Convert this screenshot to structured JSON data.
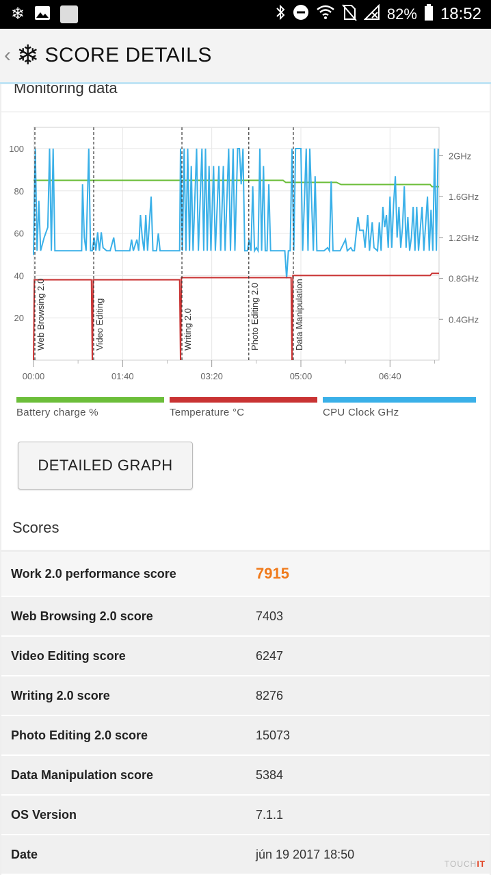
{
  "status_bar": {
    "battery_percent": "82%",
    "time": "18:52",
    "left_icons": [
      "snowflake-icon",
      "image-icon",
      "square-icon"
    ],
    "right_icons": [
      "bluetooth-icon",
      "do-not-disturb-icon",
      "wifi-icon",
      "no-sim-icon",
      "signal-off-icon",
      "battery-icon"
    ]
  },
  "app_bar": {
    "back_glyph": "‹",
    "title": "SCORE DETAILS"
  },
  "monitoring": {
    "title": "Monitoring data"
  },
  "chart_data": {
    "type": "line",
    "x": {
      "unit": "mm:ss",
      "ticks": [
        "00:00",
        "01:40",
        "03:20",
        "05:00",
        "06:40"
      ],
      "range": [
        0,
        455
      ]
    },
    "y_left": {
      "ticks": [
        20,
        40,
        60,
        80,
        100
      ],
      "range": [
        0,
        100
      ]
    },
    "y_right": {
      "ticks": [
        "0.4GHz",
        "0.8GHz",
        "1.2GHz",
        "1.6GHz",
        "2GHz"
      ],
      "range_ghz": [
        0,
        2.07
      ]
    },
    "grid": true,
    "markers": [
      {
        "label": "Web Browsing 2.0",
        "x": 0
      },
      {
        "label": "Video Editing",
        "x": 66
      },
      {
        "label": "Writing 2.0",
        "x": 165
      },
      {
        "label": "Photo Editing 2.0",
        "x": 240
      },
      {
        "label": "Data Manipulation",
        "x": 290
      }
    ],
    "series": [
      {
        "name": "Battery charge %",
        "color": "#6cbe3a",
        "axis": "left",
        "points": [
          [
            0,
            85
          ],
          [
            280,
            85
          ],
          [
            283,
            84
          ],
          [
            340,
            84
          ],
          [
            345,
            83
          ],
          [
            445,
            83
          ],
          [
            447,
            82
          ],
          [
            455,
            82
          ]
        ]
      },
      {
        "name": "Temperature °C",
        "color": "#c93333",
        "axis": "left",
        "points": [
          [
            0,
            0
          ],
          [
            1,
            38
          ],
          [
            65,
            38
          ],
          [
            66,
            0
          ],
          [
            67,
            38
          ],
          [
            164,
            38
          ],
          [
            165,
            0
          ],
          [
            166,
            39
          ],
          [
            289,
            39
          ],
          [
            290,
            0
          ],
          [
            291,
            40
          ],
          [
            445,
            40
          ],
          [
            447,
            41
          ],
          [
            455,
            41
          ]
        ]
      },
      {
        "name": "CPU Clock GHz",
        "color": "#3ab0e8",
        "axis": "right",
        "points": [
          [
            0,
            1.03
          ],
          [
            2,
            2.07
          ],
          [
            4,
            1.07
          ],
          [
            6,
            1.56
          ],
          [
            8,
            1.07
          ],
          [
            12,
            1.2
          ],
          [
            16,
            1.3
          ],
          [
            18,
            2.07
          ],
          [
            20,
            1.07
          ],
          [
            22,
            2.07
          ],
          [
            24,
            1.07
          ],
          [
            30,
            1.07
          ],
          [
            42,
            1.07
          ],
          [
            54,
            1.07
          ],
          [
            55,
            1.72
          ],
          [
            57,
            1.2
          ],
          [
            59,
            1.07
          ],
          [
            62,
            2.07
          ],
          [
            64,
            1.07
          ],
          [
            66,
            1.07
          ],
          [
            68,
            1.2
          ],
          [
            70,
            1.07
          ],
          [
            72,
            1.25
          ],
          [
            74,
            1.07
          ],
          [
            76,
            1.25
          ],
          [
            78,
            1.1
          ],
          [
            82,
            1.07
          ],
          [
            86,
            1.07
          ],
          [
            90,
            1.2
          ],
          [
            92,
            1.07
          ],
          [
            96,
            1.07
          ],
          [
            100,
            1.07
          ],
          [
            108,
            1.07
          ],
          [
            110,
            1.18
          ],
          [
            112,
            1.07
          ],
          [
            116,
            1.18
          ],
          [
            118,
            1.07
          ],
          [
            120,
            1.42
          ],
          [
            122,
            1.2
          ],
          [
            124,
            1.07
          ],
          [
            126,
            1.42
          ],
          [
            128,
            1.07
          ],
          [
            132,
            1.6
          ],
          [
            134,
            1.07
          ],
          [
            138,
            1.07
          ],
          [
            140,
            1.24
          ],
          [
            142,
            1.07
          ],
          [
            145,
            1.07
          ],
          [
            150,
            1.07
          ],
          [
            160,
            1.07
          ],
          [
            164,
            1.07
          ],
          [
            165,
            2.07
          ],
          [
            167,
            1.07
          ],
          [
            169,
            2.07
          ],
          [
            171,
            1.07
          ],
          [
            173,
            2.07
          ],
          [
            175,
            1.07
          ],
          [
            177,
            1.9
          ],
          [
            179,
            1.07
          ],
          [
            183,
            2.07
          ],
          [
            185,
            1.07
          ],
          [
            189,
            2.07
          ],
          [
            191,
            1.07
          ],
          [
            193,
            2.07
          ],
          [
            195,
            1.07
          ],
          [
            197,
            1.9
          ],
          [
            199,
            1.07
          ],
          [
            202,
            1.9
          ],
          [
            204,
            1.07
          ],
          [
            208,
            1.9
          ],
          [
            210,
            1.07
          ],
          [
            213,
            1.9
          ],
          [
            215,
            1.07
          ],
          [
            219,
            2.07
          ],
          [
            221,
            1.07
          ],
          [
            224,
            2.07
          ],
          [
            226,
            1.07
          ],
          [
            229,
            2.07
          ],
          [
            231,
            2.07
          ],
          [
            233,
            1.72
          ],
          [
            235,
            2.07
          ],
          [
            237,
            1.07
          ],
          [
            240,
            1.07
          ],
          [
            242,
            1.18
          ],
          [
            244,
            1.07
          ],
          [
            246,
            1.7
          ],
          [
            248,
            1.07
          ],
          [
            250,
            1.1
          ],
          [
            252,
            1.07
          ],
          [
            254,
            2.07
          ],
          [
            256,
            1.07
          ],
          [
            258,
            1.9
          ],
          [
            260,
            1.07
          ],
          [
            262,
            1.07
          ],
          [
            264,
            1.72
          ],
          [
            266,
            1.07
          ],
          [
            268,
            1.07
          ],
          [
            270,
            1.07
          ],
          [
            275,
            1.07
          ],
          [
            282,
            1.07
          ],
          [
            284,
            0.8
          ],
          [
            286,
            1.07
          ],
          [
            288,
            1.07
          ],
          [
            290,
            2.07
          ],
          [
            292,
            1.07
          ],
          [
            294,
            2.07
          ],
          [
            296,
            2.07
          ],
          [
            300,
            2.07
          ],
          [
            302,
            1.07
          ],
          [
            306,
            2.07
          ],
          [
            308,
            1.07
          ],
          [
            310,
            2.07
          ],
          [
            314,
            1.07
          ],
          [
            316,
            1.8
          ],
          [
            318,
            1.07
          ],
          [
            322,
            1.07
          ],
          [
            326,
            1.07
          ],
          [
            330,
            1.1
          ],
          [
            332,
            1.07
          ],
          [
            334,
            1.75
          ],
          [
            336,
            1.07
          ],
          [
            340,
            1.07
          ],
          [
            344,
            1.07
          ],
          [
            350,
            1.18
          ],
          [
            352,
            1.07
          ],
          [
            356,
            1.1
          ],
          [
            358,
            1.07
          ],
          [
            360,
            1.07
          ],
          [
            364,
            1.4
          ],
          [
            366,
            1.27
          ],
          [
            370,
            1.27
          ],
          [
            372,
            1.1
          ],
          [
            375,
            1.42
          ],
          [
            377,
            1.07
          ],
          [
            380,
            1.35
          ],
          [
            382,
            1.1
          ],
          [
            386,
            1.07
          ],
          [
            388,
            1.35
          ],
          [
            390,
            1.07
          ],
          [
            392,
            1.5
          ],
          [
            394,
            1.3
          ],
          [
            396,
            1.42
          ],
          [
            398,
            1.1
          ],
          [
            400,
            1.6
          ],
          [
            402,
            1.1
          ],
          [
            404,
            1.52
          ],
          [
            406,
            1.8
          ],
          [
            408,
            1.2
          ],
          [
            410,
            1.5
          ],
          [
            412,
            1.1
          ],
          [
            414,
            1.3
          ],
          [
            416,
            1.7
          ],
          [
            418,
            1.1
          ],
          [
            420,
            1.4
          ],
          [
            422,
            1.07
          ],
          [
            424,
            1.2
          ],
          [
            426,
            1.5
          ],
          [
            428,
            1.07
          ],
          [
            430,
            1.5
          ],
          [
            432,
            1.07
          ],
          [
            436,
            1.5
          ],
          [
            438,
            1.07
          ],
          [
            442,
            1.6
          ],
          [
            444,
            1.07
          ],
          [
            446,
            1.47
          ],
          [
            448,
            1.07
          ],
          [
            450,
            2.07
          ],
          [
            452,
            1.07
          ],
          [
            454,
            2.07
          ]
        ]
      }
    ]
  },
  "legend": [
    {
      "label": "Battery charge %",
      "color": "#6cbe3a"
    },
    {
      "label": "Temperature °C",
      "color": "#c93333"
    },
    {
      "label": "CPU Clock GHz",
      "color": "#3ab0e8"
    }
  ],
  "detailed_graph_button": "DETAILED GRAPH",
  "scores": {
    "title": "Scores",
    "rows": [
      {
        "key": "Work 2.0 performance score",
        "value": "7915"
      },
      {
        "key": "Web Browsing 2.0 score",
        "value": "7403"
      },
      {
        "key": "Video Editing score",
        "value": "6247"
      },
      {
        "key": "Writing 2.0 score",
        "value": "8276"
      },
      {
        "key": "Photo Editing 2.0 score",
        "value": "15073"
      },
      {
        "key": "Data Manipulation score",
        "value": "5384"
      },
      {
        "key": "OS Version",
        "value": "7.1.1"
      },
      {
        "key": "Date",
        "value": "jún 19 2017 18:50"
      }
    ]
  },
  "watermark": {
    "prefix": "TOUCH",
    "suffix": "IT"
  }
}
